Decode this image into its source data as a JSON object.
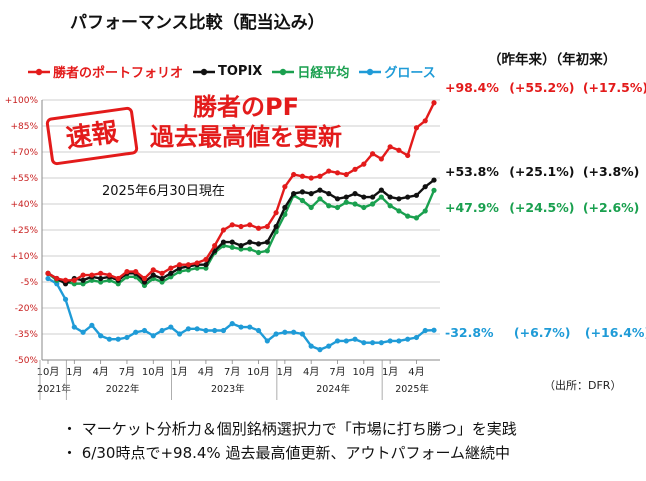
{
  "title": "パフォーマンス比較（配当込み）",
  "column_headers": "（昨年来）（年初来）",
  "stamp": "速報",
  "headline": [
    "勝者のPF",
    "過去最高値を更新"
  ],
  "as_of": "2025年6月30日現在",
  "source": "（出所：DFR）",
  "bullets": [
    "・ マーケット分析力＆個別銘柄選択力で「市場に打ち勝つ」を実践",
    "・ 6/30時点で+98.4% 過去最高値更新、アウトパフォーム継続中"
  ],
  "colors": {
    "winner": "#e31b1b",
    "topix": "#111111",
    "nikkei": "#1aa04f",
    "growth": "#1f9bd7",
    "grid": "#bfbfbf"
  },
  "chart_data": {
    "type": "line",
    "ylim": [
      -50,
      100
    ],
    "yticks": [
      100,
      85,
      70,
      55,
      40,
      25,
      10,
      -5,
      -20,
      -35,
      -50
    ],
    "ytick_labels": [
      "+100%",
      "+85%",
      "+70%",
      "+55%",
      "+40%",
      "+25%",
      "+10%",
      "-5%",
      "-20%",
      "-35%",
      "-50%"
    ],
    "x_tick_labels": [
      "10月",
      "1月",
      "4月",
      "7月",
      "10月",
      "1月",
      "4月",
      "7月",
      "10月",
      "1月",
      "4月",
      "7月",
      "10月",
      "1月",
      "4月",
      "7月",
      "10月",
      "1月",
      "4月"
    ],
    "year_labels": [
      "2021年",
      "2022年",
      "2023年",
      "2024年",
      "2025年"
    ],
    "x": [
      "2021-10",
      "2021-11",
      "2021-12",
      "2022-01",
      "2022-02",
      "2022-03",
      "2022-04",
      "2022-05",
      "2022-06",
      "2022-07",
      "2022-08",
      "2022-09",
      "2022-10",
      "2022-11",
      "2022-12",
      "2023-01",
      "2023-02",
      "2023-03",
      "2023-04",
      "2023-05",
      "2023-06",
      "2023-07",
      "2023-08",
      "2023-09",
      "2023-10",
      "2023-11",
      "2023-12",
      "2024-01",
      "2024-02",
      "2024-03",
      "2024-04",
      "2024-05",
      "2024-06",
      "2024-07",
      "2024-08",
      "2024-09",
      "2024-10",
      "2024-11",
      "2024-12",
      "2025-01",
      "2025-02",
      "2025-03",
      "2025-04",
      "2025-05",
      "2025-06"
    ],
    "series": [
      {
        "name": "勝者のポートフォリオ",
        "color": "#e31b1b",
        "values": [
          0,
          -3,
          -4,
          -4,
          -1,
          -1,
          0,
          -1,
          -3,
          1,
          1,
          -3,
          2,
          0,
          3,
          5,
          5,
          6,
          8,
          16,
          25,
          28,
          27,
          28,
          26,
          27,
          35,
          50,
          57,
          56,
          55,
          56,
          59,
          58,
          57,
          60,
          63,
          69,
          66,
          73,
          71,
          68,
          84,
          88,
          98.4
        ],
        "end_label": "+98.4%",
        "since_last_year": "(+55.2%)",
        "ytd": "(+17.5%)"
      },
      {
        "name": "TOPIX",
        "color": "#111111",
        "values": [
          0,
          -3,
          -6,
          -3,
          -4,
          -2,
          -3,
          -2,
          -4,
          0,
          0,
          -5,
          -1,
          -3,
          0,
          3,
          4,
          5,
          5,
          13,
          18,
          18,
          16,
          18,
          17,
          18,
          27,
          38,
          46,
          47,
          46,
          48,
          46,
          43,
          44,
          46,
          44,
          44,
          48,
          44,
          43,
          44,
          45,
          50,
          53.8
        ],
        "end_label": "+53.8%",
        "since_last_year": "(+25.1%)",
        "ytd": "(+3.8%)"
      },
      {
        "name": "日経平均",
        "color": "#1aa04f",
        "values": [
          0,
          -4,
          -5,
          -6,
          -6,
          -4,
          -5,
          -4,
          -6,
          -2,
          -2,
          -7,
          -3,
          -5,
          -2,
          1,
          2,
          3,
          3,
          12,
          16,
          15,
          14,
          14,
          12,
          13,
          24,
          34,
          45,
          42,
          38,
          43,
          39,
          38,
          41,
          40,
          38,
          40,
          44,
          39,
          36,
          33,
          32,
          36,
          47.9
        ],
        "end_label": "+47.9%",
        "since_last_year": "(+24.5%)",
        "ytd": "(+2.6%)"
      },
      {
        "name": "グロース",
        "color": "#1f9bd7",
        "values": [
          -3,
          -6,
          -15,
          -31,
          -34,
          -30,
          -36,
          -38,
          -38,
          -37,
          -34,
          -33,
          -36,
          -33,
          -31,
          -35,
          -32,
          -32,
          -33,
          -33,
          -33,
          -29,
          -31,
          -31,
          -33,
          -39,
          -35,
          -34,
          -34,
          -35,
          -42,
          -44,
          -42,
          -39,
          -39,
          -38,
          -40,
          -40,
          -40,
          -39,
          -39,
          -38,
          -37,
          -33,
          -32.8
        ],
        "end_label": "-32.8%",
        "since_last_year": "(+6.7%)",
        "ytd": "(+16.4%)"
      }
    ]
  }
}
